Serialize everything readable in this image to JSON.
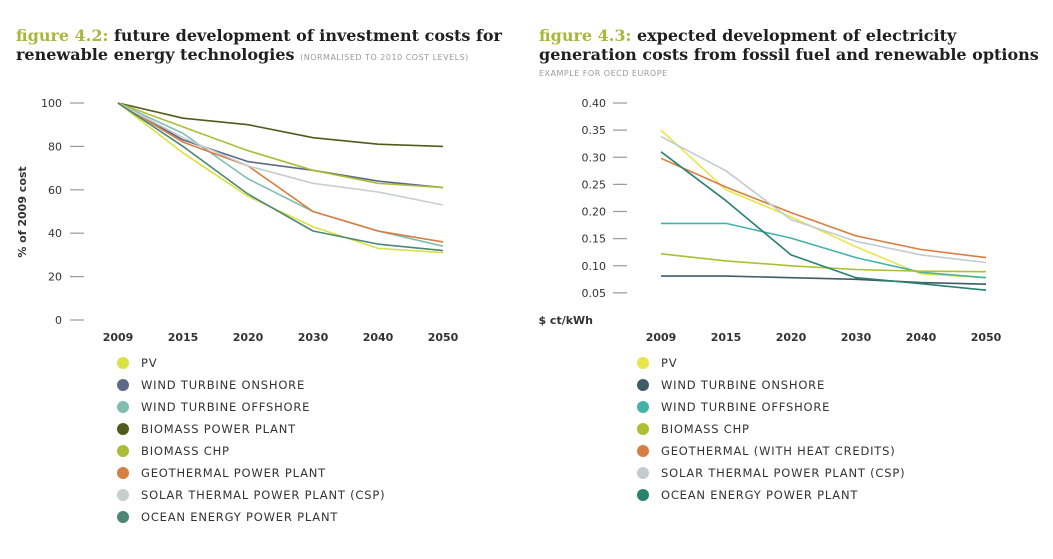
{
  "chart_data": [
    {
      "type": "line",
      "figure_label": "figure 4.2:",
      "title": "future development of investment costs for renewable energy technologies",
      "subtitle": "(NORMALISED TO 2010 COST LEVELS)",
      "ylabel": "% of 2009 cost",
      "xlabel": "",
      "categories": [
        "2009",
        "2015",
        "2020",
        "2030",
        "2040",
        "2050"
      ],
      "yticks": [
        "100",
        "80",
        "60",
        "40",
        "20",
        "0"
      ],
      "ylim": [
        0,
        100
      ],
      "grid": false,
      "legend_position": "bottom",
      "series": [
        {
          "name": "PV",
          "color": "#d9e243",
          "values": [
            100,
            77,
            57,
            43,
            33,
            31
          ]
        },
        {
          "name": "WIND TURBINE ONSHORE",
          "color": "#5c6a88",
          "values": [
            100,
            83,
            73,
            69,
            64,
            61
          ]
        },
        {
          "name": "WIND TURBINE OFFSHORE",
          "color": "#82bdb0",
          "values": [
            100,
            86,
            65,
            50,
            41,
            34
          ]
        },
        {
          "name": "BIOMASS POWER PLANT",
          "color": "#525b1d",
          "values": [
            100,
            93,
            90,
            84,
            81,
            80
          ]
        },
        {
          "name": "BIOMASS CHP",
          "color": "#a9bd38",
          "values": [
            100,
            89,
            78,
            69,
            63,
            61
          ]
        },
        {
          "name": "GEOTHERMAL POWER PLANT",
          "color": "#d77e42",
          "values": [
            100,
            82,
            71,
            50,
            41,
            36
          ]
        },
        {
          "name": "SOLAR THERMAL POWER PLANT (CSP)",
          "color": "#c6cece",
          "values": [
            100,
            84,
            71,
            63,
            59,
            53
          ]
        },
        {
          "name": "OCEAN ENERGY POWER PLANT",
          "color": "#4b8676",
          "values": [
            100,
            80,
            58,
            41,
            35,
            32
          ]
        }
      ]
    },
    {
      "type": "line",
      "figure_label": "figure 4.3:",
      "title": "expected development of electricity generation costs from fossil fuel and renewable options",
      "subtitle": "EXAMPLE FOR OECD EUROPE",
      "ylabel": "$ ct/kWh",
      "xlabel": "",
      "categories": [
        "2009",
        "2015",
        "2020",
        "2030",
        "2040",
        "2050"
      ],
      "yticks": [
        "0.40",
        "0.35",
        "0.30",
        "0.25",
        "0.20",
        "0.15",
        "0.10",
        "0.05"
      ],
      "ylim": [
        0,
        0.4
      ],
      "grid": false,
      "legend_position": "bottom",
      "series": [
        {
          "name": "PV",
          "color": "#e9e54a",
          "values": [
            0.35,
            0.24,
            0.19,
            0.135,
            0.085,
            0.078
          ]
        },
        {
          "name": "WIND TURBINE ONSHORE",
          "color": "#3f5c66",
          "values": [
            0.081,
            0.081,
            0.078,
            0.075,
            0.069,
            0.066
          ]
        },
        {
          "name": "WIND TURBINE OFFSHORE",
          "color": "#45b2a8",
          "values": [
            0.178,
            0.178,
            0.151,
            0.115,
            0.088,
            0.078
          ]
        },
        {
          "name": "BIOMASS CHP",
          "color": "#aebf33",
          "values": [
            0.122,
            0.109,
            0.1,
            0.093,
            0.09,
            0.089
          ]
        },
        {
          "name": "GEOTHERMAL (WITH HEAT CREDITS)",
          "color": "#d77e42",
          "values": [
            0.298,
            0.245,
            0.198,
            0.155,
            0.13,
            0.115
          ]
        },
        {
          "name": "SOLAR THERMAL POWER PLANT (CSP)",
          "color": "#c2cbd0",
          "values": [
            0.338,
            0.275,
            0.185,
            0.145,
            0.12,
            0.106
          ]
        },
        {
          "name": "OCEAN ENERGY POWER PLANT",
          "color": "#29826e",
          "values": [
            0.31,
            0.22,
            0.12,
            0.078,
            0.067,
            0.055
          ]
        }
      ]
    }
  ]
}
